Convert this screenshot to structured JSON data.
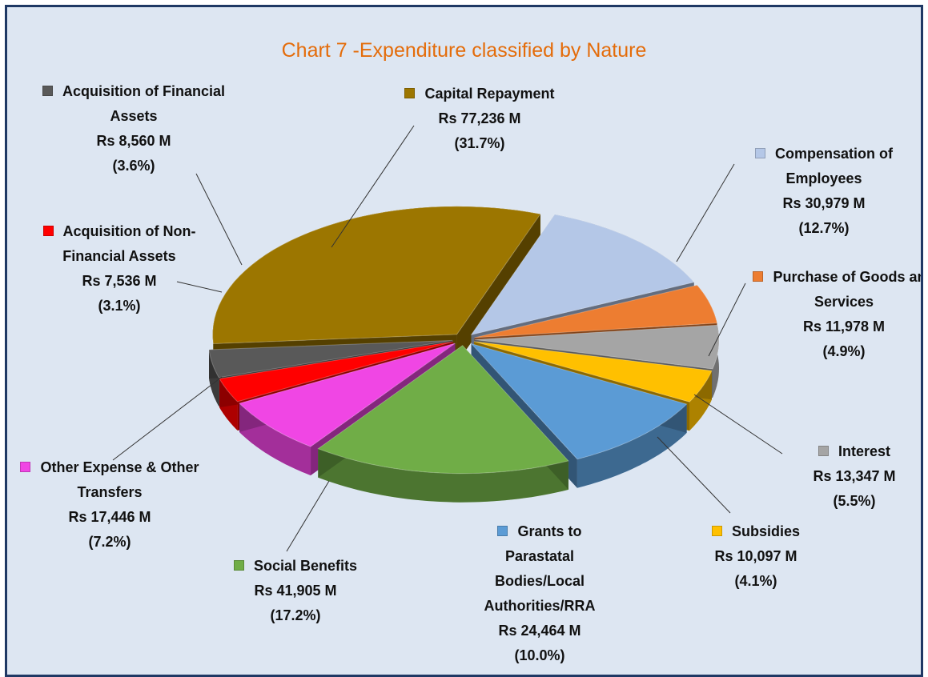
{
  "chart_data": {
    "type": "pie3d",
    "title": "Chart 7 -Expenditure classified by Nature",
    "categories": [
      "Compensation of Employees",
      "Purchase of Goods and Services",
      "Interest",
      "Subsidies",
      "Grants to Parastatal Bodies/Local Authorities/RRA",
      "Social Benefits",
      "Other Expense & Other Transfers",
      "Acquisition of Non-Financial Assets",
      "Acquisition of Financial Assets",
      "Capital Repayment"
    ],
    "values": [
      30979,
      11978,
      13347,
      10097,
      24464,
      41905,
      17446,
      7536,
      8560,
      77236
    ],
    "value_labels": [
      "Rs 30,979 M",
      "Rs 11,978 M",
      "Rs 13,347 M",
      "Rs 10,097 M",
      "Rs 24,464 M",
      "Rs 41,905 M",
      "Rs 17,446 M",
      "Rs 7,536 M",
      "Rs 8,560 M",
      "Rs 77,236 M"
    ],
    "percent_labels": [
      "(12.7%)",
      "(4.9%)",
      "(5.5%)",
      "(4.1%)",
      "(10.0%)",
      "(17.2%)",
      "(7.2%)",
      "(3.1%)",
      "(3.6%)",
      "(31.7%)"
    ],
    "colors": [
      "#b4c7e7",
      "#ed7d31",
      "#a5a5a5",
      "#ffc000",
      "#5b9bd5",
      "#70ad47",
      "#f046e4",
      "#ff0000",
      "#595959",
      "#9c7600"
    ]
  }
}
